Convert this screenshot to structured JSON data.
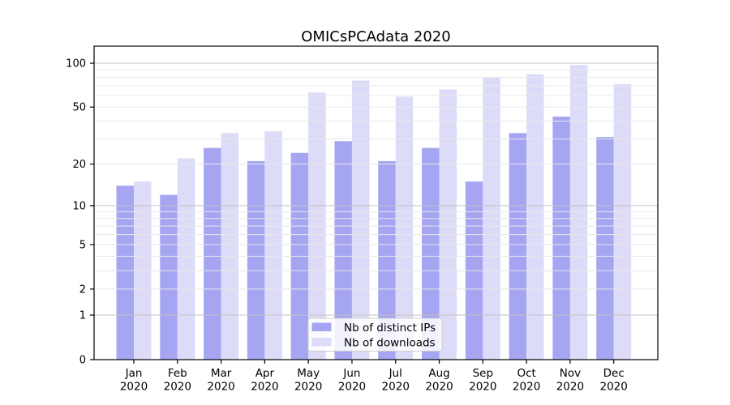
{
  "chart_data": {
    "type": "bar",
    "title": "OMICsPCAdata 2020",
    "categories": [
      "Jan",
      "Feb",
      "Mar",
      "Apr",
      "May",
      "Jun",
      "Jul",
      "Aug",
      "Sep",
      "Oct",
      "Nov",
      "Dec"
    ],
    "x_year_label": "2020",
    "series": [
      {
        "name": "Nb of distinct IPs",
        "color": "#a5a5f2",
        "values": [
          14,
          12,
          26,
          21,
          24,
          29,
          21,
          26,
          15,
          33,
          43,
          31
        ]
      },
      {
        "name": "Nb of downloads",
        "color": "#dcdcf8",
        "values": [
          15,
          22,
          33,
          34,
          63,
          76,
          59,
          66,
          80,
          84,
          97,
          72
        ]
      }
    ],
    "yscale": "log1p",
    "ylim": [
      0,
      127
    ],
    "ytick_values": [
      0,
      1,
      2,
      5,
      10,
      20,
      50,
      100
    ],
    "ytick_labels": [
      "0",
      "1",
      "2",
      "5",
      "10",
      "20",
      "50",
      "100"
    ],
    "grid_minor_values": [
      2,
      3,
      4,
      5,
      6,
      7,
      8,
      9,
      20,
      30,
      40,
      50,
      60,
      70,
      80,
      90
    ],
    "grid_major_values": [
      1,
      10,
      100
    ],
    "grid": true,
    "grid_above_bars": true,
    "legend_position": "lower center",
    "colors": {
      "background": "#ffffff",
      "axis": "#000000",
      "grid_major": "#c3c3c3",
      "grid_minor": "#e8e8e8",
      "legend_border": "#cccccc",
      "legend_background": "#ffffff"
    }
  }
}
